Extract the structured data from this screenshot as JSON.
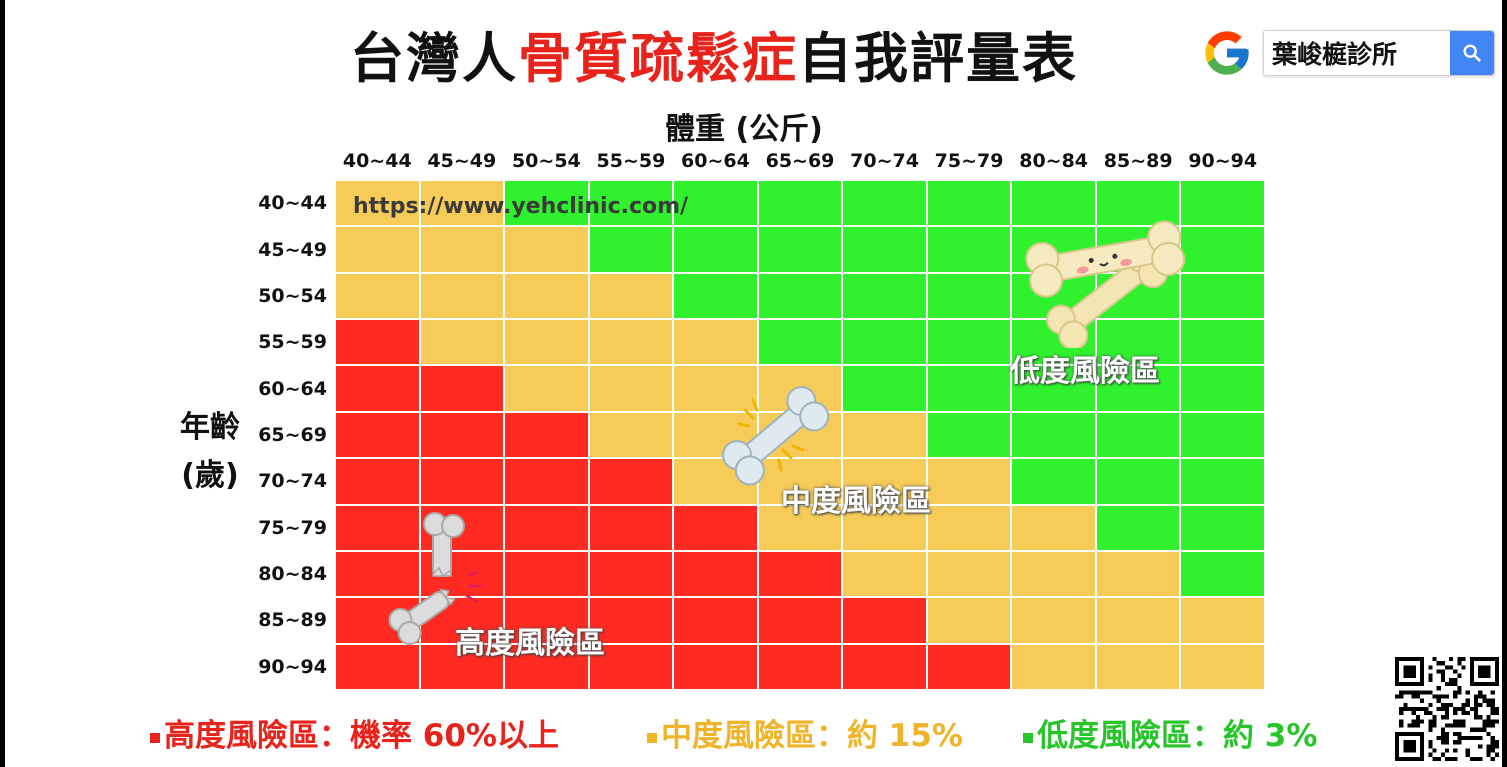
{
  "title": {
    "part1": "台灣人",
    "part2": "骨質疏鬆症",
    "part3": "自我評量表"
  },
  "search": {
    "query": "葉峻榳診所"
  },
  "chart_data": {
    "type": "heatmap",
    "xlabel": "體重 (公斤)",
    "ylabel_line1": "年齡",
    "ylabel_line2": "(歲)",
    "x_categories": [
      "40~44",
      "45~49",
      "50~54",
      "55~59",
      "60~64",
      "65~69",
      "70~74",
      "75~79",
      "80~84",
      "85~89",
      "90~94"
    ],
    "y_categories": [
      "40~44",
      "45~49",
      "50~54",
      "55~59",
      "60~64",
      "65~69",
      "70~74",
      "75~79",
      "80~84",
      "85~89",
      "90~94"
    ],
    "zones": [
      "high",
      "medium",
      "low"
    ],
    "cells": [
      [
        "medium",
        "medium",
        "low",
        "low",
        "low",
        "low",
        "low",
        "low",
        "low",
        "low",
        "low"
      ],
      [
        "medium",
        "medium",
        "medium",
        "low",
        "low",
        "low",
        "low",
        "low",
        "low",
        "low",
        "low"
      ],
      [
        "medium",
        "medium",
        "medium",
        "medium",
        "low",
        "low",
        "low",
        "low",
        "low",
        "low",
        "low"
      ],
      [
        "high",
        "medium",
        "medium",
        "medium",
        "medium",
        "low",
        "low",
        "low",
        "low",
        "low",
        "low"
      ],
      [
        "high",
        "high",
        "medium",
        "medium",
        "medium",
        "medium",
        "low",
        "low",
        "low",
        "low",
        "low"
      ],
      [
        "high",
        "high",
        "high",
        "medium",
        "medium",
        "medium",
        "medium",
        "low",
        "low",
        "low",
        "low"
      ],
      [
        "high",
        "high",
        "high",
        "high",
        "medium",
        "medium",
        "medium",
        "medium",
        "low",
        "low",
        "low"
      ],
      [
        "high",
        "high",
        "high",
        "high",
        "high",
        "medium",
        "medium",
        "medium",
        "medium",
        "low",
        "low"
      ],
      [
        "high",
        "high",
        "high",
        "high",
        "high",
        "high",
        "medium",
        "medium",
        "medium",
        "medium",
        "low"
      ],
      [
        "high",
        "high",
        "high",
        "high",
        "high",
        "high",
        "high",
        "medium",
        "medium",
        "medium",
        "medium"
      ],
      [
        "high",
        "high",
        "high",
        "high",
        "high",
        "high",
        "high",
        "high",
        "medium",
        "medium",
        "medium"
      ]
    ],
    "colors": {
      "high": "#ff2b22",
      "medium": "#f6cb58",
      "low": "#2ff12e"
    },
    "zone_labels": {
      "high": "高度風險區",
      "medium": "中度風險區",
      "low": "低度風險區"
    },
    "url_annotation": "https://www.yehclinic.com/",
    "legend": [
      {
        "zone": "high",
        "text": "高度風險區：機率 60%以上",
        "color": "#e8231c"
      },
      {
        "zone": "medium",
        "text": "中度風險區：約 15%",
        "color": "#f0b42a"
      },
      {
        "zone": "low",
        "text": "低度風險區：約 3%",
        "color": "#27c52a"
      }
    ]
  }
}
